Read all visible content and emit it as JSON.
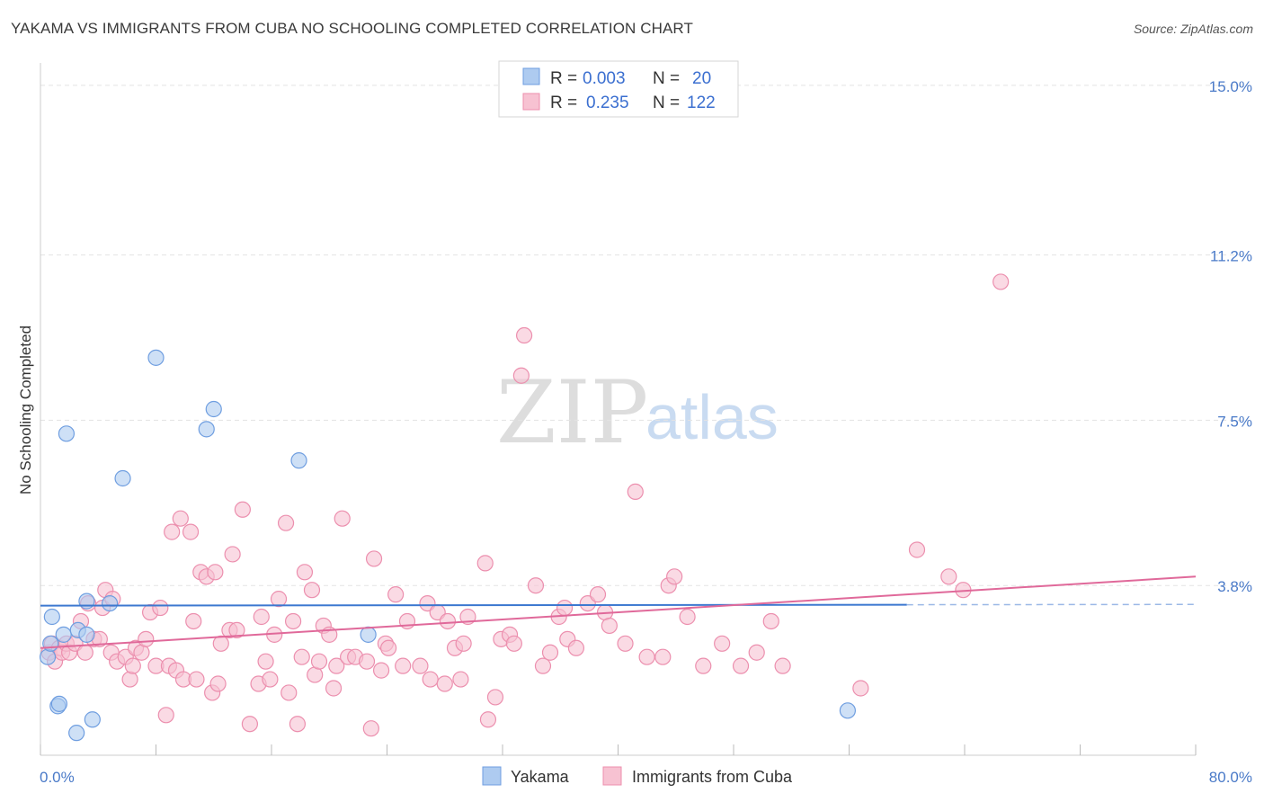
{
  "title": "YAKAMA VS IMMIGRANTS FROM CUBA NO SCHOOLING COMPLETED CORRELATION CHART",
  "source": "Source: ZipAtlas.com",
  "watermark": {
    "zip": "ZIP",
    "atlas": "atlas"
  },
  "colors": {
    "yakama_fill": "#aecbf0",
    "yakama_stroke": "#6f9ee0",
    "yakama_line": "#3c78d0",
    "cuba_fill": "#f7c2d2",
    "cuba_stroke": "#ec8fae",
    "cuba_line": "#e0699a",
    "tick_text": "#4a7ac8",
    "grid": "#e3e3e3"
  },
  "legend": {
    "rows": [
      {
        "r_label": "R =",
        "r_value": "0.003",
        "n_label": "N =",
        "n_value": "20"
      },
      {
        "r_label": "R =",
        "r_value": "0.235",
        "n_label": "N =",
        "n_value": "122"
      }
    ]
  },
  "bottom_legend": [
    "Yakama",
    "Immigrants from Cuba"
  ],
  "chart_data": {
    "type": "scatter",
    "title": "YAKAMA VS IMMIGRANTS FROM CUBA NO SCHOOLING COMPLETED CORRELATION CHART",
    "xlabel": "",
    "ylabel": "No Schooling Completed",
    "xlim": [
      0,
      80
    ],
    "ylim": [
      0,
      15.5
    ],
    "x_tick_labels": [
      "0.0%",
      "80.0%"
    ],
    "y_ticks": [
      3.8,
      7.5,
      11.2,
      15.0
    ],
    "y_tick_labels": [
      "3.8%",
      "7.5%",
      "11.2%",
      "15.0%"
    ],
    "series": [
      {
        "name": "Yakama",
        "R": 0.003,
        "N": 20,
        "trend": {
          "x": [
            0,
            60
          ],
          "y": [
            3.35,
            3.37
          ],
          "dashed_to": 80
        },
        "points": [
          [
            0.5,
            2.2
          ],
          [
            0.7,
            2.5
          ],
          [
            0.8,
            3.1
          ],
          [
            1.2,
            1.1
          ],
          [
            1.3,
            1.15
          ],
          [
            1.6,
            2.7
          ],
          [
            1.8,
            7.2
          ],
          [
            2.5,
            0.5
          ],
          [
            2.6,
            2.8
          ],
          [
            3.2,
            2.7
          ],
          [
            3.2,
            3.45
          ],
          [
            3.6,
            0.8
          ],
          [
            4.8,
            3.4
          ],
          [
            5.7,
            6.2
          ],
          [
            8.0,
            8.9
          ],
          [
            11.5,
            7.3
          ],
          [
            12.0,
            7.75
          ],
          [
            17.9,
            6.6
          ],
          [
            22.7,
            2.7
          ],
          [
            55.9,
            1.0
          ]
        ]
      },
      {
        "name": "Immigrants from Cuba",
        "R": 0.235,
        "N": 122,
        "trend": {
          "x": [
            0,
            80
          ],
          "y": [
            2.4,
            4.0
          ]
        },
        "points": [
          [
            0.6,
            2.3
          ],
          [
            0.8,
            2.5
          ],
          [
            1.0,
            2.1
          ],
          [
            1.3,
            2.4
          ],
          [
            1.5,
            2.3
          ],
          [
            1.8,
            2.5
          ],
          [
            2.0,
            2.3
          ],
          [
            2.4,
            2.5
          ],
          [
            2.8,
            3.0
          ],
          [
            3.1,
            2.3
          ],
          [
            3.3,
            3.4
          ],
          [
            3.7,
            2.6
          ],
          [
            4.1,
            2.6
          ],
          [
            4.3,
            3.3
          ],
          [
            4.5,
            3.7
          ],
          [
            4.9,
            2.3
          ],
          [
            5.0,
            3.5
          ],
          [
            5.3,
            2.1
          ],
          [
            5.9,
            2.2
          ],
          [
            6.2,
            1.7
          ],
          [
            6.4,
            2.0
          ],
          [
            6.6,
            2.4
          ],
          [
            7.0,
            2.3
          ],
          [
            7.3,
            2.6
          ],
          [
            7.6,
            3.2
          ],
          [
            8.0,
            2.0
          ],
          [
            8.3,
            3.3
          ],
          [
            8.7,
            0.9
          ],
          [
            8.9,
            2.0
          ],
          [
            9.1,
            5.0
          ],
          [
            9.4,
            1.9
          ],
          [
            9.7,
            5.3
          ],
          [
            9.9,
            1.7
          ],
          [
            10.4,
            5.0
          ],
          [
            10.6,
            3.0
          ],
          [
            10.8,
            1.7
          ],
          [
            11.1,
            4.1
          ],
          [
            11.5,
            4.0
          ],
          [
            11.9,
            1.4
          ],
          [
            12.1,
            4.1
          ],
          [
            12.3,
            1.6
          ],
          [
            12.5,
            2.5
          ],
          [
            13.1,
            2.8
          ],
          [
            13.3,
            4.5
          ],
          [
            13.6,
            2.8
          ],
          [
            14.0,
            5.5
          ],
          [
            14.5,
            0.7
          ],
          [
            15.1,
            1.6
          ],
          [
            15.3,
            3.1
          ],
          [
            15.6,
            2.1
          ],
          [
            15.9,
            1.7
          ],
          [
            16.2,
            2.7
          ],
          [
            16.5,
            3.5
          ],
          [
            17.0,
            5.2
          ],
          [
            17.2,
            1.4
          ],
          [
            17.5,
            3.0
          ],
          [
            17.8,
            0.7
          ],
          [
            18.1,
            2.2
          ],
          [
            18.3,
            4.1
          ],
          [
            18.8,
            3.7
          ],
          [
            19.0,
            1.8
          ],
          [
            19.3,
            2.1
          ],
          [
            19.6,
            2.9
          ],
          [
            20.0,
            2.7
          ],
          [
            20.3,
            1.5
          ],
          [
            20.5,
            2.0
          ],
          [
            20.9,
            5.3
          ],
          [
            21.3,
            2.2
          ],
          [
            21.8,
            2.2
          ],
          [
            22.6,
            2.1
          ],
          [
            22.9,
            0.6
          ],
          [
            23.1,
            4.4
          ],
          [
            23.6,
            1.9
          ],
          [
            23.9,
            2.5
          ],
          [
            24.1,
            2.4
          ],
          [
            24.6,
            3.6
          ],
          [
            25.1,
            2.0
          ],
          [
            25.4,
            3.0
          ],
          [
            26.3,
            2.0
          ],
          [
            26.8,
            3.4
          ],
          [
            27.0,
            1.7
          ],
          [
            27.5,
            3.2
          ],
          [
            28.0,
            1.6
          ],
          [
            28.2,
            3.0
          ],
          [
            28.7,
            2.4
          ],
          [
            29.1,
            1.7
          ],
          [
            29.3,
            2.5
          ],
          [
            29.6,
            3.1
          ],
          [
            30.8,
            4.3
          ],
          [
            31.0,
            0.8
          ],
          [
            31.5,
            1.3
          ],
          [
            31.9,
            2.6
          ],
          [
            32.5,
            2.7
          ],
          [
            32.8,
            2.5
          ],
          [
            33.3,
            8.5
          ],
          [
            33.5,
            9.4
          ],
          [
            34.3,
            3.8
          ],
          [
            34.8,
            2.0
          ],
          [
            35.3,
            2.3
          ],
          [
            35.9,
            3.1
          ],
          [
            36.3,
            3.3
          ],
          [
            36.5,
            2.6
          ],
          [
            37.1,
            2.4
          ],
          [
            37.9,
            3.4
          ],
          [
            38.6,
            3.6
          ],
          [
            39.1,
            3.2
          ],
          [
            39.4,
            2.9
          ],
          [
            40.5,
            2.5
          ],
          [
            41.2,
            5.9
          ],
          [
            42.0,
            2.2
          ],
          [
            43.1,
            2.2
          ],
          [
            43.5,
            3.8
          ],
          [
            43.9,
            4.0
          ],
          [
            44.8,
            3.1
          ],
          [
            45.9,
            2.0
          ],
          [
            47.2,
            2.5
          ],
          [
            48.5,
            2.0
          ],
          [
            49.6,
            2.3
          ],
          [
            50.6,
            3.0
          ],
          [
            51.4,
            2.0
          ],
          [
            56.8,
            1.5
          ],
          [
            60.7,
            4.6
          ],
          [
            62.9,
            4.0
          ],
          [
            63.9,
            3.7
          ],
          [
            66.5,
            10.6
          ]
        ]
      }
    ]
  }
}
